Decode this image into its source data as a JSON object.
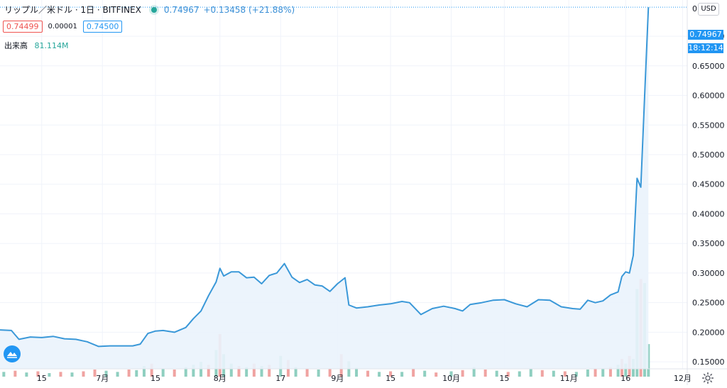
{
  "header": {
    "symbol": "リップル／米ドル · 1日 · BITFINEX",
    "last_price": "0.74967",
    "change": "+0.13458 (+21.88%)",
    "bid": "0.74499",
    "spread": "0.00001",
    "ask": "0.74500",
    "volume_label": "出来高",
    "volume_value": "81.114M",
    "currency_button": "USD",
    "price_tag": "0.74967",
    "countdown": "18:12:14"
  },
  "colors": {
    "line": "#3a98d8",
    "area": "#eaf3fc",
    "volume_up": "#8fcfc0",
    "volume_down": "#f0a3a1",
    "accent": "#2196f3"
  },
  "icons": [
    "tradingview-logo-icon",
    "gear-icon",
    "live-status-icon"
  ],
  "chart_data": {
    "type": "line",
    "title": "リップル／米ドル · 1日 · BITFINEX",
    "x_range": [
      "2020-06-04",
      "2020-11-24"
    ],
    "y_range": [
      0.125,
      0.76
    ],
    "grid": true,
    "x_ticks": [
      {
        "date": "2020-06-15",
        "label": "15"
      },
      {
        "date": "2020-07-01",
        "label": "7月"
      },
      {
        "date": "2020-07-15",
        "label": "15"
      },
      {
        "date": "2020-08-01",
        "label": "8月"
      },
      {
        "date": "2020-08-17",
        "label": "17"
      },
      {
        "date": "2020-09-01",
        "label": "9月"
      },
      {
        "date": "2020-09-15",
        "label": "15"
      },
      {
        "date": "2020-10-01",
        "label": "10月"
      },
      {
        "date": "2020-10-15",
        "label": "15"
      },
      {
        "date": "2020-11-01",
        "label": "11月"
      },
      {
        "date": "2020-11-16",
        "label": "16"
      },
      {
        "date": "2020-12-01",
        "label": "12月"
      }
    ],
    "y_ticks": [
      "0.15000",
      "0.20000",
      "0.25000",
      "0.30000",
      "0.35000",
      "0.40000",
      "0.45000",
      "0.50000",
      "0.55000",
      "0.60000",
      "0.65000",
      "0.70000"
    ],
    "series": [
      {
        "points": [
          [
            "2020-06-04",
            0.204
          ],
          [
            "2020-06-07",
            0.203
          ],
          [
            "2020-06-09",
            0.188
          ],
          [
            "2020-06-12",
            0.192
          ],
          [
            "2020-06-15",
            0.191
          ],
          [
            "2020-06-18",
            0.193
          ],
          [
            "2020-06-21",
            0.189
          ],
          [
            "2020-06-24",
            0.188
          ],
          [
            "2020-06-27",
            0.184
          ],
          [
            "2020-06-30",
            0.176
          ],
          [
            "2020-07-03",
            0.177
          ],
          [
            "2020-07-06",
            0.177
          ],
          [
            "2020-07-09",
            0.177
          ],
          [
            "2020-07-11",
            0.18
          ],
          [
            "2020-07-13",
            0.198
          ],
          [
            "2020-07-15",
            0.202
          ],
          [
            "2020-07-17",
            0.203
          ],
          [
            "2020-07-20",
            0.2
          ],
          [
            "2020-07-23",
            0.208
          ],
          [
            "2020-07-25",
            0.223
          ],
          [
            "2020-07-27",
            0.236
          ],
          [
            "2020-07-29",
            0.262
          ],
          [
            "2020-07-31",
            0.285
          ],
          [
            "2020-08-01",
            0.308
          ],
          [
            "2020-08-02",
            0.295
          ],
          [
            "2020-08-04",
            0.302
          ],
          [
            "2020-08-06",
            0.302
          ],
          [
            "2020-08-08",
            0.292
          ],
          [
            "2020-08-10",
            0.293
          ],
          [
            "2020-08-12",
            0.282
          ],
          [
            "2020-08-14",
            0.296
          ],
          [
            "2020-08-16",
            0.3
          ],
          [
            "2020-08-18",
            0.316
          ],
          [
            "2020-08-20",
            0.293
          ],
          [
            "2020-08-22",
            0.284
          ],
          [
            "2020-08-24",
            0.289
          ],
          [
            "2020-08-26",
            0.28
          ],
          [
            "2020-08-28",
            0.278
          ],
          [
            "2020-08-30",
            0.269
          ],
          [
            "2020-09-01",
            0.282
          ],
          [
            "2020-09-03",
            0.292
          ],
          [
            "2020-09-04",
            0.246
          ],
          [
            "2020-09-06",
            0.241
          ],
          [
            "2020-09-09",
            0.243
          ],
          [
            "2020-09-12",
            0.246
          ],
          [
            "2020-09-15",
            0.248
          ],
          [
            "2020-09-18",
            0.252
          ],
          [
            "2020-09-20",
            0.25
          ],
          [
            "2020-09-23",
            0.23
          ],
          [
            "2020-09-26",
            0.24
          ],
          [
            "2020-09-29",
            0.244
          ],
          [
            "2020-10-02",
            0.24
          ],
          [
            "2020-10-04",
            0.236
          ],
          [
            "2020-10-06",
            0.247
          ],
          [
            "2020-10-09",
            0.25
          ],
          [
            "2020-10-12",
            0.254
          ],
          [
            "2020-10-15",
            0.255
          ],
          [
            "2020-10-18",
            0.248
          ],
          [
            "2020-10-21",
            0.243
          ],
          [
            "2020-10-24",
            0.255
          ],
          [
            "2020-10-27",
            0.254
          ],
          [
            "2020-10-30",
            0.243
          ],
          [
            "2020-11-02",
            0.24
          ],
          [
            "2020-11-04",
            0.239
          ],
          [
            "2020-11-06",
            0.254
          ],
          [
            "2020-11-08",
            0.25
          ],
          [
            "2020-11-10",
            0.253
          ],
          [
            "2020-11-12",
            0.263
          ],
          [
            "2020-11-14",
            0.268
          ],
          [
            "2020-11-15",
            0.294
          ],
          [
            "2020-11-16",
            0.302
          ],
          [
            "2020-11-17",
            0.3
          ],
          [
            "2020-11-18",
            0.33
          ],
          [
            "2020-11-19",
            0.46
          ],
          [
            "2020-11-20",
            0.445
          ],
          [
            "2020-11-21",
            0.6
          ],
          [
            "2020-11-22",
            0.749
          ]
        ]
      }
    ],
    "volume": {
      "label": "出来高",
      "bars": [
        {
          "date": "2020-06-05",
          "value": 0.008,
          "dir": "up"
        },
        {
          "date": "2020-06-08",
          "value": 0.01,
          "dir": "down"
        },
        {
          "date": "2020-06-11",
          "value": 0.007,
          "dir": "up"
        },
        {
          "date": "2020-06-14",
          "value": 0.009,
          "dir": "down"
        },
        {
          "date": "2020-06-17",
          "value": 0.006,
          "dir": "up"
        },
        {
          "date": "2020-06-20",
          "value": 0.008,
          "dir": "down"
        },
        {
          "date": "2020-06-23",
          "value": 0.007,
          "dir": "up"
        },
        {
          "date": "2020-06-26",
          "value": 0.009,
          "dir": "down"
        },
        {
          "date": "2020-06-29",
          "value": 0.012,
          "dir": "down"
        },
        {
          "date": "2020-07-02",
          "value": 0.01,
          "dir": "up"
        },
        {
          "date": "2020-07-05",
          "value": 0.008,
          "dir": "up"
        },
        {
          "date": "2020-07-08",
          "value": 0.012,
          "dir": "down"
        },
        {
          "date": "2020-07-10",
          "value": 0.011,
          "dir": "up"
        },
        {
          "date": "2020-07-12",
          "value": 0.018,
          "dir": "up"
        },
        {
          "date": "2020-07-14",
          "value": 0.022,
          "dir": "down"
        },
        {
          "date": "2020-07-17",
          "value": 0.014,
          "dir": "up"
        },
        {
          "date": "2020-07-20",
          "value": 0.012,
          "dir": "down"
        },
        {
          "date": "2020-07-23",
          "value": 0.016,
          "dir": "up"
        },
        {
          "date": "2020-07-25",
          "value": 0.02,
          "dir": "up"
        },
        {
          "date": "2020-07-27",
          "value": 0.025,
          "dir": "up"
        },
        {
          "date": "2020-07-29",
          "value": 0.02,
          "dir": "down"
        },
        {
          "date": "2020-07-31",
          "value": 0.045,
          "dir": "up"
        },
        {
          "date": "2020-08-01",
          "value": 0.072,
          "dir": "down"
        },
        {
          "date": "2020-08-02",
          "value": 0.038,
          "dir": "up"
        },
        {
          "date": "2020-08-04",
          "value": 0.022,
          "dir": "up"
        },
        {
          "date": "2020-08-06",
          "value": 0.018,
          "dir": "down"
        },
        {
          "date": "2020-08-08",
          "value": 0.016,
          "dir": "up"
        },
        {
          "date": "2020-08-10",
          "value": 0.022,
          "dir": "down"
        },
        {
          "date": "2020-08-12",
          "value": 0.018,
          "dir": "up"
        },
        {
          "date": "2020-08-14",
          "value": 0.02,
          "dir": "down"
        },
        {
          "date": "2020-08-17",
          "value": 0.035,
          "dir": "up"
        },
        {
          "date": "2020-08-19",
          "value": 0.028,
          "dir": "down"
        },
        {
          "date": "2020-08-21",
          "value": 0.016,
          "dir": "up"
        },
        {
          "date": "2020-08-24",
          "value": 0.014,
          "dir": "down"
        },
        {
          "date": "2020-08-27",
          "value": 0.012,
          "dir": "up"
        },
        {
          "date": "2020-08-30",
          "value": 0.013,
          "dir": "down"
        },
        {
          "date": "2020-09-02",
          "value": 0.038,
          "dir": "down"
        },
        {
          "date": "2020-09-04",
          "value": 0.026,
          "dir": "up"
        },
        {
          "date": "2020-09-06",
          "value": 0.015,
          "dir": "up"
        },
        {
          "date": "2020-09-09",
          "value": 0.01,
          "dir": "down"
        },
        {
          "date": "2020-09-12",
          "value": 0.008,
          "dir": "up"
        },
        {
          "date": "2020-09-15",
          "value": 0.009,
          "dir": "down"
        },
        {
          "date": "2020-09-18",
          "value": 0.008,
          "dir": "up"
        },
        {
          "date": "2020-09-21",
          "value": 0.014,
          "dir": "down"
        },
        {
          "date": "2020-09-24",
          "value": 0.01,
          "dir": "up"
        },
        {
          "date": "2020-09-27",
          "value": 0.007,
          "dir": "down"
        },
        {
          "date": "2020-10-01",
          "value": 0.009,
          "dir": "up"
        },
        {
          "date": "2020-10-04",
          "value": 0.011,
          "dir": "down"
        },
        {
          "date": "2020-10-07",
          "value": 0.016,
          "dir": "up"
        },
        {
          "date": "2020-10-10",
          "value": 0.012,
          "dir": "down"
        },
        {
          "date": "2020-10-13",
          "value": 0.01,
          "dir": "up"
        },
        {
          "date": "2020-10-16",
          "value": 0.008,
          "dir": "down"
        },
        {
          "date": "2020-10-19",
          "value": 0.009,
          "dir": "up"
        },
        {
          "date": "2020-10-22",
          "value": 0.013,
          "dir": "up"
        },
        {
          "date": "2020-10-25",
          "value": 0.011,
          "dir": "down"
        },
        {
          "date": "2020-10-28",
          "value": 0.01,
          "dir": "up"
        },
        {
          "date": "2020-10-31",
          "value": 0.009,
          "dir": "down"
        },
        {
          "date": "2020-11-03",
          "value": 0.008,
          "dir": "up"
        },
        {
          "date": "2020-11-06",
          "value": 0.012,
          "dir": "up"
        },
        {
          "date": "2020-11-08",
          "value": 0.013,
          "dir": "down"
        },
        {
          "date": "2020-11-10",
          "value": 0.014,
          "dir": "up"
        },
        {
          "date": "2020-11-12",
          "value": 0.016,
          "dir": "down"
        },
        {
          "date": "2020-11-14",
          "value": 0.02,
          "dir": "up"
        },
        {
          "date": "2020-11-15",
          "value": 0.03,
          "dir": "down"
        },
        {
          "date": "2020-11-16",
          "value": 0.022,
          "dir": "up"
        },
        {
          "date": "2020-11-17",
          "value": 0.035,
          "dir": "down"
        },
        {
          "date": "2020-11-18",
          "value": 0.03,
          "dir": "up"
        },
        {
          "date": "2020-11-19",
          "value": 0.148,
          "dir": "up"
        },
        {
          "date": "2020-11-20",
          "value": 0.165,
          "dir": "down"
        },
        {
          "date": "2020-11-21",
          "value": 0.158,
          "dir": "up"
        },
        {
          "date": "2020-11-22",
          "value": 0.055,
          "dir": "up"
        }
      ]
    }
  }
}
